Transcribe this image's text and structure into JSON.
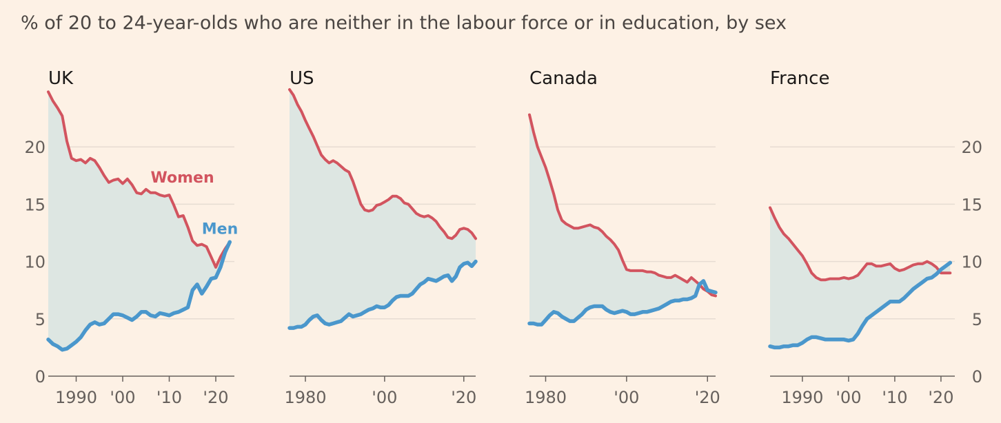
{
  "subtitle": "% of 20 to 24-year-olds who are neither in the labour force or in education, by sex",
  "colors": {
    "background": "#fdf1e5",
    "women": "#d2545f",
    "men": "#4a97cc",
    "gap_fill": "#dde6e2",
    "grid": "#e6dcd2",
    "axis": "#66605c"
  },
  "chart_data": [
    {
      "type": "line",
      "title": "UK",
      "xlim": [
        1984,
        2024
      ],
      "ylim": [
        0,
        25
      ],
      "yticks": [
        0,
        5,
        10,
        15,
        20
      ],
      "ytick_labels": [
        "0",
        "5",
        "10",
        "15",
        "20"
      ],
      "ytick_side": "left",
      "xticks": [
        1990,
        2000,
        2010,
        2020
      ],
      "xtick_labels": [
        "1990",
        "'00",
        "'10",
        "'20"
      ],
      "series_labels": {
        "women": "Women",
        "men": "Men"
      },
      "series": [
        {
          "name": "Women",
          "key": "women",
          "x": [
            1984,
            1985,
            1986,
            1987,
            1988,
            1989,
            1990,
            1991,
            1992,
            1993,
            1994,
            1995,
            1996,
            1997,
            1998,
            1999,
            2000,
            2001,
            2002,
            2003,
            2004,
            2005,
            2006,
            2007,
            2008,
            2009,
            2010,
            2011,
            2012,
            2013,
            2014,
            2015,
            2016,
            2017,
            2018,
            2019,
            2020,
            2021,
            2022,
            2023
          ],
          "y": [
            24.8,
            24.0,
            23.4,
            22.7,
            20.5,
            19.0,
            18.8,
            18.9,
            18.6,
            19.0,
            18.8,
            18.2,
            17.5,
            16.9,
            17.1,
            17.2,
            16.8,
            17.2,
            16.7,
            16.0,
            15.9,
            16.3,
            16.0,
            16.0,
            15.8,
            15.7,
            15.8,
            14.9,
            13.9,
            14.0,
            13.0,
            11.8,
            11.4,
            11.5,
            11.3,
            10.4,
            9.5,
            10.4,
            11.1,
            11.7
          ]
        },
        {
          "name": "Men",
          "key": "men",
          "x": [
            1984,
            1985,
            1986,
            1987,
            1988,
            1989,
            1990,
            1991,
            1992,
            1993,
            1994,
            1995,
            1996,
            1997,
            1998,
            1999,
            2000,
            2001,
            2002,
            2003,
            2004,
            2005,
            2006,
            2007,
            2008,
            2009,
            2010,
            2011,
            2012,
            2013,
            2014,
            2015,
            2016,
            2017,
            2018,
            2019,
            2020,
            2021,
            2022,
            2023
          ],
          "y": [
            3.2,
            2.8,
            2.6,
            2.3,
            2.4,
            2.7,
            3.0,
            3.4,
            4.0,
            4.5,
            4.7,
            4.5,
            4.6,
            5.0,
            5.4,
            5.4,
            5.3,
            5.1,
            4.9,
            5.2,
            5.6,
            5.6,
            5.3,
            5.2,
            5.5,
            5.4,
            5.3,
            5.5,
            5.6,
            5.8,
            6.0,
            7.5,
            8.0,
            7.2,
            7.8,
            8.5,
            8.6,
            9.5,
            10.8,
            11.7
          ]
        }
      ],
      "annotations": [
        {
          "text": "Women",
          "key": "women",
          "x": 2006,
          "y": 16.9
        },
        {
          "text": "Men",
          "key": "men",
          "x": 2017,
          "y": 12.4
        }
      ]
    },
    {
      "type": "line",
      "title": "US",
      "xlim": [
        1976,
        2023
      ],
      "ylim": [
        0,
        25
      ],
      "yticks": [
        0,
        5,
        10,
        15,
        20
      ],
      "ytick_labels": [],
      "xticks": [
        1980,
        2000,
        2020
      ],
      "xtick_labels": [
        "1980",
        "'00",
        "'20"
      ],
      "series": [
        {
          "name": "Women",
          "key": "women",
          "x": [
            1976,
            1977,
            1978,
            1979,
            1980,
            1981,
            1982,
            1983,
            1984,
            1985,
            1986,
            1987,
            1988,
            1989,
            1990,
            1991,
            1992,
            1993,
            1994,
            1995,
            1996,
            1997,
            1998,
            1999,
            2000,
            2001,
            2002,
            2003,
            2004,
            2005,
            2006,
            2007,
            2008,
            2009,
            2010,
            2011,
            2012,
            2013,
            2014,
            2015,
            2016,
            2017,
            2018,
            2019,
            2020,
            2021,
            2022,
            2023
          ],
          "y": [
            25.0,
            24.5,
            23.7,
            23.1,
            22.3,
            21.6,
            20.9,
            20.1,
            19.3,
            18.9,
            18.6,
            18.8,
            18.6,
            18.3,
            18.0,
            17.8,
            17.0,
            16.0,
            15.0,
            14.5,
            14.4,
            14.5,
            14.9,
            15.0,
            15.2,
            15.4,
            15.7,
            15.7,
            15.5,
            15.1,
            15.0,
            14.6,
            14.2,
            14.0,
            13.9,
            14.0,
            13.8,
            13.5,
            13.0,
            12.6,
            12.1,
            12.0,
            12.3,
            12.8,
            12.9,
            12.8,
            12.5,
            12.0
          ]
        },
        {
          "name": "Men",
          "key": "men",
          "x": [
            1976,
            1977,
            1978,
            1979,
            1980,
            1981,
            1982,
            1983,
            1984,
            1985,
            1986,
            1987,
            1988,
            1989,
            1990,
            1991,
            1992,
            1993,
            1994,
            1995,
            1996,
            1997,
            1998,
            1999,
            2000,
            2001,
            2002,
            2003,
            2004,
            2005,
            2006,
            2007,
            2008,
            2009,
            2010,
            2011,
            2012,
            2013,
            2014,
            2015,
            2016,
            2017,
            2018,
            2019,
            2020,
            2021,
            2022,
            2023
          ],
          "y": [
            4.2,
            4.2,
            4.3,
            4.3,
            4.5,
            4.9,
            5.2,
            5.3,
            4.9,
            4.6,
            4.5,
            4.6,
            4.7,
            4.8,
            5.1,
            5.4,
            5.2,
            5.3,
            5.4,
            5.6,
            5.8,
            5.9,
            6.1,
            6.0,
            6.0,
            6.2,
            6.6,
            6.9,
            7.0,
            7.0,
            7.0,
            7.2,
            7.6,
            8.0,
            8.2,
            8.5,
            8.4,
            8.3,
            8.5,
            8.7,
            8.8,
            8.3,
            8.7,
            9.5,
            9.8,
            9.9,
            9.6,
            10.0
          ]
        }
      ]
    },
    {
      "type": "line",
      "title": "Canada",
      "xlim": [
        1976,
        2022
      ],
      "ylim": [
        0,
        25
      ],
      "yticks": [
        0,
        5,
        10,
        15,
        20
      ],
      "ytick_labels": [],
      "xticks": [
        1980,
        2000,
        2020
      ],
      "xtick_labels": [
        "1980",
        "'00",
        "'20"
      ],
      "series": [
        {
          "name": "Women",
          "key": "women",
          "x": [
            1976,
            1977,
            1978,
            1979,
            1980,
            1981,
            1982,
            1983,
            1984,
            1985,
            1986,
            1987,
            1988,
            1989,
            1990,
            1991,
            1992,
            1993,
            1994,
            1995,
            1996,
            1997,
            1998,
            1999,
            2000,
            2001,
            2002,
            2003,
            2004,
            2005,
            2006,
            2007,
            2008,
            2009,
            2010,
            2011,
            2012,
            2013,
            2014,
            2015,
            2016,
            2017,
            2018,
            2019,
            2020,
            2021,
            2022
          ],
          "y": [
            22.8,
            21.3,
            20.0,
            19.1,
            18.2,
            17.1,
            15.9,
            14.5,
            13.6,
            13.3,
            13.1,
            12.9,
            12.9,
            13.0,
            13.1,
            13.2,
            13.0,
            12.9,
            12.6,
            12.2,
            11.9,
            11.5,
            11.0,
            10.1,
            9.3,
            9.2,
            9.2,
            9.2,
            9.2,
            9.1,
            9.1,
            9.0,
            8.8,
            8.7,
            8.6,
            8.6,
            8.8,
            8.6,
            8.4,
            8.2,
            8.6,
            8.3,
            8.0,
            7.6,
            7.4,
            7.1,
            7.0
          ]
        },
        {
          "name": "Men",
          "key": "men",
          "x": [
            1976,
            1977,
            1978,
            1979,
            1980,
            1981,
            1982,
            1983,
            1984,
            1985,
            1986,
            1987,
            1988,
            1989,
            1990,
            1991,
            1992,
            1993,
            1994,
            1995,
            1996,
            1997,
            1998,
            1999,
            2000,
            2001,
            2002,
            2003,
            2004,
            2005,
            2006,
            2007,
            2008,
            2009,
            2010,
            2011,
            2012,
            2013,
            2014,
            2015,
            2016,
            2017,
            2018,
            2019,
            2020,
            2021,
            2022
          ],
          "y": [
            4.6,
            4.6,
            4.5,
            4.5,
            4.9,
            5.3,
            5.6,
            5.5,
            5.2,
            5.0,
            4.8,
            4.8,
            5.1,
            5.4,
            5.8,
            6.0,
            6.1,
            6.1,
            6.1,
            5.8,
            5.6,
            5.5,
            5.6,
            5.7,
            5.6,
            5.4,
            5.4,
            5.5,
            5.6,
            5.6,
            5.7,
            5.8,
            5.9,
            6.1,
            6.3,
            6.5,
            6.6,
            6.6,
            6.7,
            6.7,
            6.8,
            7.0,
            8.0,
            8.3,
            7.5,
            7.4,
            7.3
          ]
        }
      ]
    },
    {
      "type": "line",
      "title": "France",
      "xlim": [
        1983,
        2023
      ],
      "ylim": [
        0,
        25
      ],
      "yticks": [
        0,
        5,
        10,
        15,
        20
      ],
      "ytick_labels": [
        "0",
        "5",
        "10",
        "15",
        "20"
      ],
      "ytick_side": "right",
      "xticks": [
        1990,
        2000,
        2010,
        2020
      ],
      "xtick_labels": [
        "1990",
        "'00",
        "'10",
        "'20"
      ],
      "series": [
        {
          "name": "Women",
          "key": "women",
          "x": [
            1983,
            1984,
            1985,
            1986,
            1987,
            1988,
            1989,
            1990,
            1991,
            1992,
            1993,
            1994,
            1995,
            1996,
            1997,
            1998,
            1999,
            2000,
            2001,
            2002,
            2003,
            2004,
            2005,
            2006,
            2007,
            2008,
            2009,
            2010,
            2011,
            2012,
            2013,
            2014,
            2015,
            2016,
            2017,
            2018,
            2019,
            2020,
            2021,
            2022
          ],
          "y": [
            14.7,
            13.8,
            13.0,
            12.4,
            12.0,
            11.5,
            11.0,
            10.5,
            9.8,
            9.0,
            8.6,
            8.4,
            8.4,
            8.5,
            8.5,
            8.5,
            8.6,
            8.5,
            8.6,
            8.8,
            9.3,
            9.8,
            9.8,
            9.6,
            9.6,
            9.7,
            9.8,
            9.4,
            9.2,
            9.3,
            9.5,
            9.7,
            9.8,
            9.8,
            10.0,
            9.8,
            9.5,
            9.0,
            9.0,
            9.0
          ]
        },
        {
          "name": "Men",
          "key": "men",
          "x": [
            1983,
            1984,
            1985,
            1986,
            1987,
            1988,
            1989,
            1990,
            1991,
            1992,
            1993,
            1994,
            1995,
            1996,
            1997,
            1998,
            1999,
            2000,
            2001,
            2002,
            2003,
            2004,
            2005,
            2006,
            2007,
            2008,
            2009,
            2010,
            2011,
            2012,
            2013,
            2014,
            2015,
            2016,
            2017,
            2018,
            2019,
            2020,
            2021,
            2022
          ],
          "y": [
            2.6,
            2.5,
            2.5,
            2.6,
            2.6,
            2.7,
            2.7,
            2.9,
            3.2,
            3.4,
            3.4,
            3.3,
            3.2,
            3.2,
            3.2,
            3.2,
            3.2,
            3.1,
            3.2,
            3.7,
            4.4,
            5.0,
            5.3,
            5.6,
            5.9,
            6.2,
            6.5,
            6.5,
            6.5,
            6.8,
            7.2,
            7.6,
            7.9,
            8.2,
            8.5,
            8.6,
            8.9,
            9.3,
            9.6,
            9.9
          ]
        }
      ]
    }
  ]
}
